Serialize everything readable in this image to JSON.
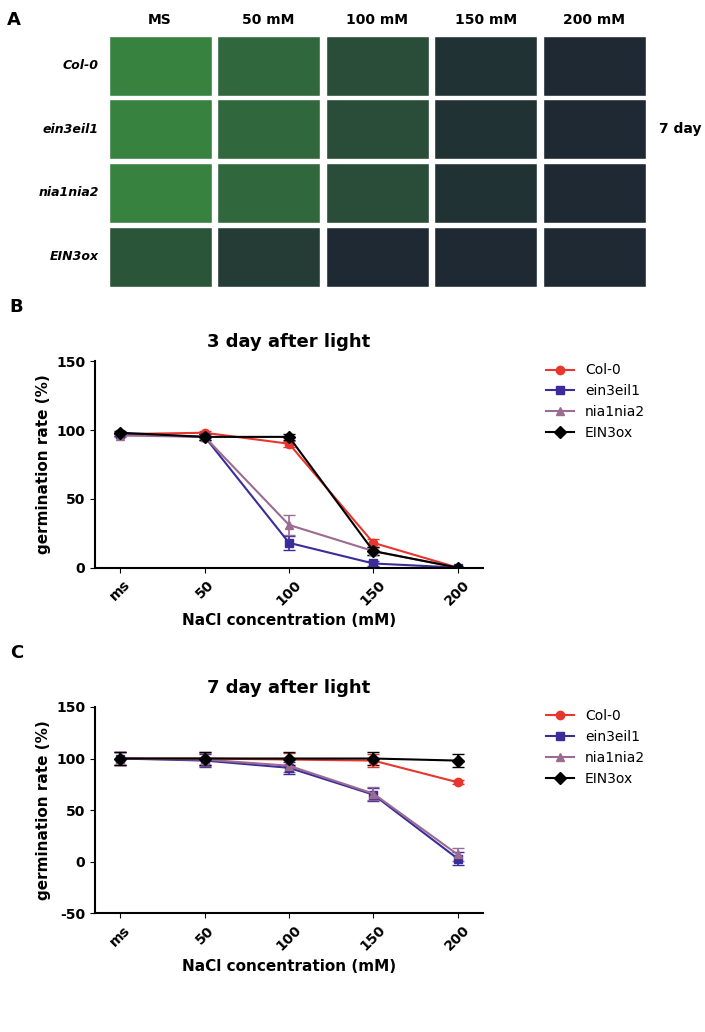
{
  "photo_panel": {
    "label": "A",
    "columns": [
      "MS",
      "50 mM",
      "100 mM",
      "150 mM",
      "200 mM"
    ],
    "rows": [
      "Col-0",
      "ein3eil1",
      "nia1nia2",
      "EIN3ox"
    ],
    "note": "7 day"
  },
  "chart_data": [
    {
      "type": "line",
      "panel": "B",
      "title": "3 day after light",
      "x_label": "NaCl concentration (mM)",
      "y_label": "germination rate (%)",
      "categories": [
        "ms",
        "50",
        "100",
        "150",
        "200"
      ],
      "ylim": [
        0,
        150
      ],
      "yticks": [
        0,
        50,
        100,
        150
      ],
      "grid": false,
      "legend": "upper right",
      "series": [
        {
          "name": "Col-0",
          "color": "#e8352d",
          "marker": "circle",
          "values": [
            97,
            98,
            90,
            18,
            0
          ],
          "errors": [
            1,
            1,
            2,
            3,
            0
          ]
        },
        {
          "name": "ein3eil1",
          "color": "#3b2d99",
          "marker": "square",
          "values": [
            97,
            95,
            18,
            3,
            0
          ],
          "errors": [
            1,
            2,
            5,
            2,
            0
          ]
        },
        {
          "name": "nia1nia2",
          "color": "#9c6b90",
          "marker": "triangle",
          "values": [
            96,
            95,
            31,
            12,
            0
          ],
          "errors": [
            1,
            2,
            7,
            3,
            0
          ]
        },
        {
          "name": "EIN3ox",
          "color": "#000000",
          "marker": "diamond",
          "values": [
            98,
            95,
            95,
            12,
            0
          ],
          "errors": [
            1,
            2,
            2,
            3,
            0
          ]
        }
      ]
    },
    {
      "type": "line",
      "panel": "C",
      "title": "7 day after light",
      "x_label": "NaCl concentration (mM)",
      "y_label": "germination rate (%)",
      "categories": [
        "ms",
        "50",
        "100",
        "150",
        "200"
      ],
      "ylim": [
        -50,
        150
      ],
      "yticks": [
        -50,
        0,
        50,
        100,
        150
      ],
      "grid": false,
      "legend": "upper right",
      "series": [
        {
          "name": "Col-0",
          "color": "#e8352d",
          "marker": "circle",
          "values": [
            100,
            100,
            99,
            98,
            77
          ],
          "errors": [
            6,
            6,
            6,
            6,
            2
          ]
        },
        {
          "name": "ein3eil1",
          "color": "#3b2d99",
          "marker": "square",
          "values": [
            100,
            98,
            91,
            65,
            3
          ],
          "errors": [
            6,
            6,
            6,
            6,
            6
          ]
        },
        {
          "name": "nia1nia2",
          "color": "#9c6b90",
          "marker": "triangle",
          "values": [
            100,
            99,
            93,
            66,
            7
          ],
          "errors": [
            6,
            6,
            6,
            6,
            6
          ]
        },
        {
          "name": "EIN3ox",
          "color": "#000000",
          "marker": "diamond",
          "values": [
            100,
            100,
            100,
            100,
            98
          ],
          "errors": [
            6,
            6,
            6,
            6,
            6
          ]
        }
      ]
    }
  ]
}
